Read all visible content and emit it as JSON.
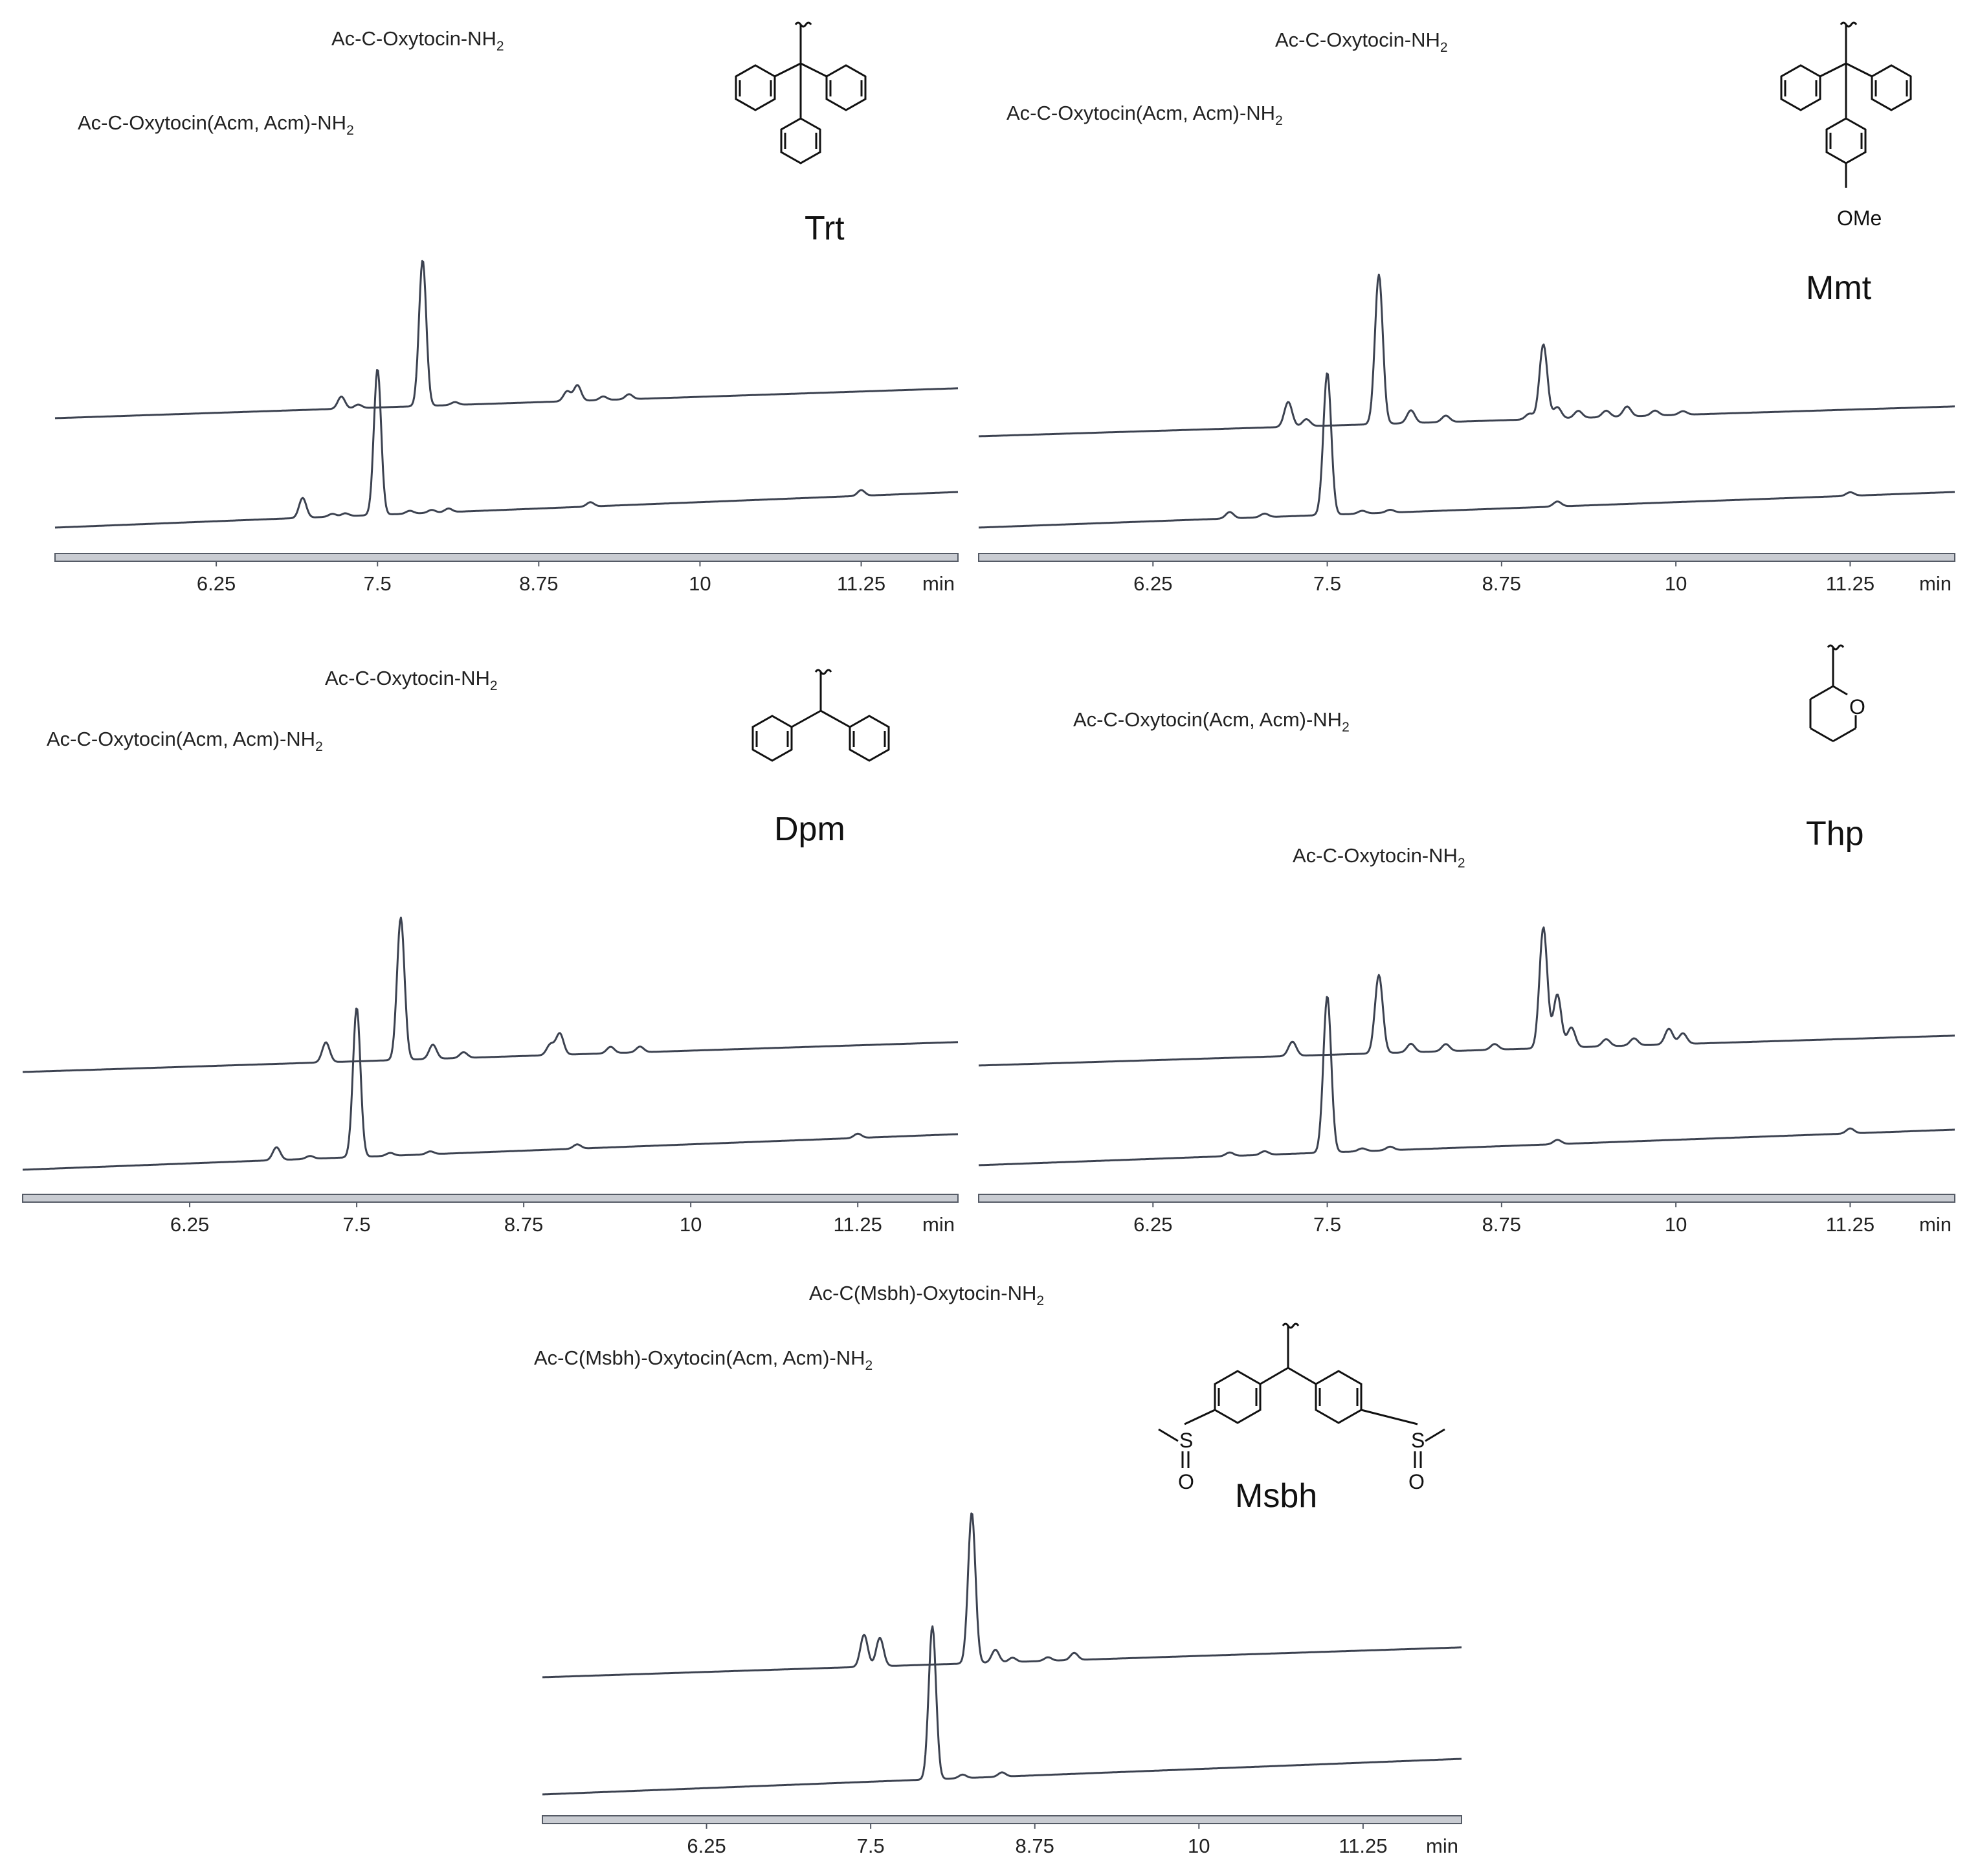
{
  "chart_data": [
    {
      "type": "line",
      "group": "Trt",
      "xlabel": "min",
      "xticks": [
        6.25,
        7.5,
        8.75,
        10,
        11.25
      ],
      "xlim": [
        5.0,
        12.0
      ],
      "peak_labels": [
        {
          "text": "Ac-C-Oxytocin(Acm, Acm)-NH",
          "sub": "2",
          "x": 7.5
        },
        {
          "text": "Ac-C-Oxytocin-NH",
          "sub": "2",
          "x": 7.85
        }
      ],
      "series": [
        {
          "baseline": [
            0.4,
            0.82
          ],
          "peaks": [
            [
              7.22,
              0.17
            ],
            [
              7.35,
              0.05
            ],
            [
              7.85,
              2.05
            ],
            [
              8.1,
              0.04
            ],
            [
              8.97,
              0.14
            ],
            [
              9.05,
              0.22
            ],
            [
              9.25,
              0.05
            ],
            [
              9.45,
              0.07
            ]
          ]
        },
        {
          "baseline": [
            0.0,
            0.5
          ],
          "peaks": [
            [
              6.92,
              0.28
            ],
            [
              7.15,
              0.04
            ],
            [
              7.25,
              0.04
            ],
            [
              7.5,
              2.05
            ],
            [
              7.75,
              0.04
            ],
            [
              7.92,
              0.04
            ],
            [
              8.05,
              0.05
            ],
            [
              9.15,
              0.06
            ],
            [
              11.25,
              0.08
            ]
          ]
        }
      ]
    },
    {
      "type": "line",
      "group": "Mmt",
      "xlabel": "min",
      "xticks": [
        6.25,
        7.5,
        8.75,
        10,
        11.25
      ],
      "xlim": [
        5.0,
        12.0
      ],
      "peak_labels": [
        {
          "text": "Ac-C-Oxytocin(Acm, Acm)-NH",
          "sub": "2",
          "x": 7.5
        },
        {
          "text": "Ac-C-Oxytocin-NH",
          "sub": "2",
          "x": 7.87
        }
      ],
      "series": [
        {
          "baseline": [
            0.4,
            0.82
          ],
          "peaks": [
            [
              7.22,
              0.35
            ],
            [
              7.35,
              0.1
            ],
            [
              7.87,
              2.1
            ],
            [
              8.1,
              0.18
            ],
            [
              8.35,
              0.09
            ],
            [
              8.95,
              0.08
            ],
            [
              9.05,
              1.05
            ],
            [
              9.15,
              0.16
            ],
            [
              9.3,
              0.1
            ],
            [
              9.5,
              0.09
            ],
            [
              9.65,
              0.14
            ],
            [
              9.85,
              0.07
            ],
            [
              10.05,
              0.05
            ]
          ]
        },
        {
          "baseline": [
            0.0,
            0.5
          ],
          "peaks": [
            [
              6.8,
              0.09
            ],
            [
              7.05,
              0.05
            ],
            [
              7.5,
              2.0
            ],
            [
              7.75,
              0.04
            ],
            [
              7.95,
              0.04
            ],
            [
              9.15,
              0.07
            ],
            [
              11.25,
              0.05
            ]
          ]
        }
      ]
    },
    {
      "type": "line",
      "group": "Dpm",
      "xlabel": "min",
      "xticks": [
        6.25,
        7.5,
        8.75,
        10,
        11.25
      ],
      "xlim": [
        5.0,
        12.0
      ],
      "peak_labels": [
        {
          "text": "Ac-C-Oxytocin(Acm, Acm)-NH",
          "sub": "2",
          "x": 7.5
        },
        {
          "text": "Ac-C-Oxytocin-NH",
          "sub": "2",
          "x": 7.83
        }
      ],
      "series": [
        {
          "baseline": [
            0.4,
            0.82
          ],
          "peaks": [
            [
              7.27,
              0.28
            ],
            [
              7.83,
              2.0
            ],
            [
              8.07,
              0.2
            ],
            [
              8.3,
              0.08
            ],
            [
              8.95,
              0.15
            ],
            [
              9.02,
              0.3
            ],
            [
              9.4,
              0.09
            ],
            [
              9.62,
              0.08
            ]
          ]
        },
        {
          "baseline": [
            0.0,
            0.5
          ],
          "peaks": [
            [
              6.9,
              0.18
            ],
            [
              7.15,
              0.04
            ],
            [
              7.5,
              2.1
            ],
            [
              7.75,
              0.04
            ],
            [
              8.05,
              0.04
            ],
            [
              9.15,
              0.06
            ],
            [
              11.25,
              0.06
            ]
          ]
        }
      ]
    },
    {
      "type": "line",
      "group": "Thp",
      "xlabel": "min",
      "xticks": [
        6.25,
        7.5,
        8.75,
        10,
        11.25
      ],
      "xlim": [
        5.0,
        12.0
      ],
      "peak_labels": [
        {
          "text": "Ac-C-Oxytocin(Acm, Acm)-NH",
          "sub": "2",
          "x": 7.5
        },
        {
          "text": "Ac-C-Oxytocin-NH",
          "sub": "2",
          "x": 7.87
        }
      ],
      "series": [
        {
          "baseline": [
            0.4,
            0.82
          ],
          "peaks": [
            [
              7.25,
              0.2
            ],
            [
              7.87,
              1.1
            ],
            [
              8.1,
              0.12
            ],
            [
              8.35,
              0.1
            ],
            [
              8.7,
              0.08
            ],
            [
              9.05,
              1.7
            ],
            [
              9.15,
              0.75
            ],
            [
              9.25,
              0.28
            ],
            [
              9.5,
              0.1
            ],
            [
              9.7,
              0.1
            ],
            [
              9.95,
              0.22
            ],
            [
              10.05,
              0.15
            ]
          ]
        },
        {
          "baseline": [
            0.0,
            0.5
          ],
          "peaks": [
            [
              6.8,
              0.05
            ],
            [
              7.05,
              0.05
            ],
            [
              7.5,
              2.2
            ],
            [
              7.75,
              0.04
            ],
            [
              7.95,
              0.05
            ],
            [
              9.15,
              0.06
            ],
            [
              11.25,
              0.07
            ]
          ]
        }
      ]
    },
    {
      "type": "line",
      "group": "Msbh",
      "xlabel": "min",
      "xticks": [
        6.25,
        7.5,
        8.75,
        10,
        11.25
      ],
      "xlim": [
        5.0,
        12.0
      ],
      "peak_labels": [
        {
          "text": "Ac-C(Msbh)-Oxytocin(Acm, Acm)-NH",
          "sub": "2",
          "x": 7.97
        },
        {
          "text": "Ac-C(Msbh)-Oxytocin-NH",
          "sub": "2",
          "x": 8.27
        }
      ],
      "series": [
        {
          "baseline": [
            0.4,
            0.82
          ],
          "peaks": [
            [
              7.45,
              0.45
            ],
            [
              7.57,
              0.4
            ],
            [
              8.27,
              2.12
            ],
            [
              8.45,
              0.18
            ],
            [
              8.58,
              0.06
            ],
            [
              8.85,
              0.05
            ],
            [
              9.05,
              0.1
            ]
          ]
        },
        {
          "baseline": [
            0.0,
            0.5
          ],
          "peaks": [
            [
              7.97,
              2.15
            ],
            [
              8.2,
              0.05
            ],
            [
              8.5,
              0.06
            ]
          ]
        }
      ]
    }
  ]
}
